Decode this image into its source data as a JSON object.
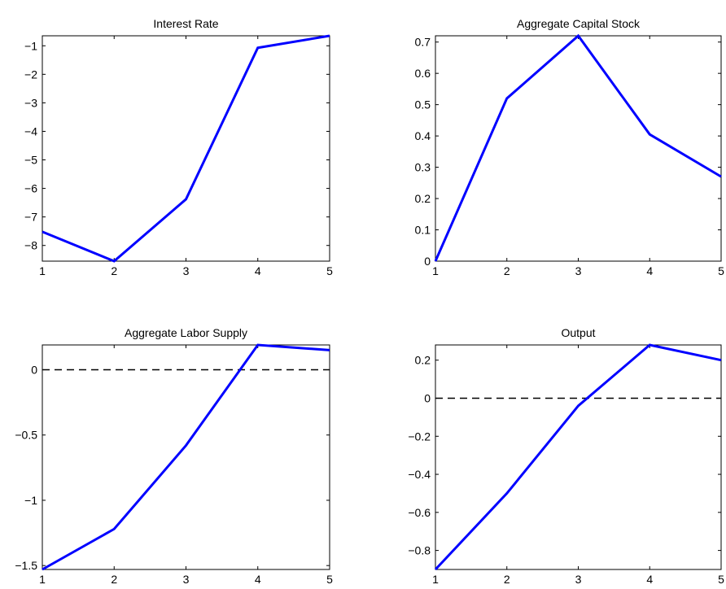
{
  "chart_data": [
    {
      "type": "line",
      "title": "Interest Rate",
      "x": [
        1,
        2,
        3,
        4,
        5
      ],
      "series": [
        {
          "values": [
            -7.52,
            -8.55,
            -6.38,
            -1.07,
            -0.65
          ],
          "color": "#0000ff"
        }
      ],
      "xlim": [
        1,
        5
      ],
      "ylim": [
        -8.55,
        -0.65
      ],
      "xticks": [
        "1",
        "2",
        "3",
        "4",
        "5"
      ],
      "yticks": [
        {
          "value": -8,
          "label": "−8"
        },
        {
          "value": -7,
          "label": "−7"
        },
        {
          "value": -6,
          "label": "−6"
        },
        {
          "value": -5,
          "label": "−5"
        },
        {
          "value": -4,
          "label": "−4"
        },
        {
          "value": -3,
          "label": "−3"
        },
        {
          "value": -2,
          "label": "−2"
        },
        {
          "value": -1,
          "label": "−1"
        }
      ],
      "zero_line": false,
      "grid": false
    },
    {
      "type": "line",
      "title": "Aggregate Capital Stock",
      "x": [
        1,
        2,
        3,
        4,
        5
      ],
      "series": [
        {
          "values": [
            0.0,
            0.52,
            0.72,
            0.405,
            0.27
          ],
          "color": "#0000ff"
        }
      ],
      "xlim": [
        1,
        5
      ],
      "ylim": [
        0,
        0.72
      ],
      "xticks": [
        "1",
        "2",
        "3",
        "4",
        "5"
      ],
      "yticks": [
        {
          "value": 0,
          "label": "0"
        },
        {
          "value": 0.1,
          "label": "0.1"
        },
        {
          "value": 0.2,
          "label": "0.2"
        },
        {
          "value": 0.3,
          "label": "0.3"
        },
        {
          "value": 0.4,
          "label": "0.4"
        },
        {
          "value": 0.5,
          "label": "0.5"
        },
        {
          "value": 0.6,
          "label": "0.6"
        },
        {
          "value": 0.7,
          "label": "0.7"
        }
      ],
      "zero_line": false,
      "grid": false
    },
    {
      "type": "line",
      "title": "Aggregate Labor Supply",
      "x": [
        1,
        2,
        3,
        4,
        5
      ],
      "series": [
        {
          "values": [
            -1.53,
            -1.22,
            -0.58,
            0.19,
            0.15
          ],
          "color": "#0000ff"
        }
      ],
      "xlim": [
        1,
        5
      ],
      "ylim": [
        -1.53,
        0.19
      ],
      "xticks": [
        "1",
        "2",
        "3",
        "4",
        "5"
      ],
      "yticks": [
        {
          "value": -1.5,
          "label": "−1.5"
        },
        {
          "value": -1,
          "label": "−1"
        },
        {
          "value": -0.5,
          "label": "−0.5"
        },
        {
          "value": 0,
          "label": "0"
        }
      ],
      "zero_line": true,
      "grid": false
    },
    {
      "type": "line",
      "title": "Output",
      "x": [
        1,
        2,
        3,
        4,
        5
      ],
      "series": [
        {
          "values": [
            -0.9,
            -0.5,
            -0.04,
            0.28,
            0.2
          ],
          "color": "#0000ff"
        }
      ],
      "xlim": [
        1,
        5
      ],
      "ylim": [
        -0.9,
        0.28
      ],
      "xticks": [
        "1",
        "2",
        "3",
        "4",
        "5"
      ],
      "yticks": [
        {
          "value": -0.8,
          "label": "−0.8"
        },
        {
          "value": -0.6,
          "label": "−0.6"
        },
        {
          "value": -0.4,
          "label": "−0.4"
        },
        {
          "value": -0.2,
          "label": "−0.2"
        },
        {
          "value": 0,
          "label": "0"
        },
        {
          "value": 0.2,
          "label": "0.2"
        }
      ],
      "zero_line": true,
      "grid": false
    }
  ]
}
